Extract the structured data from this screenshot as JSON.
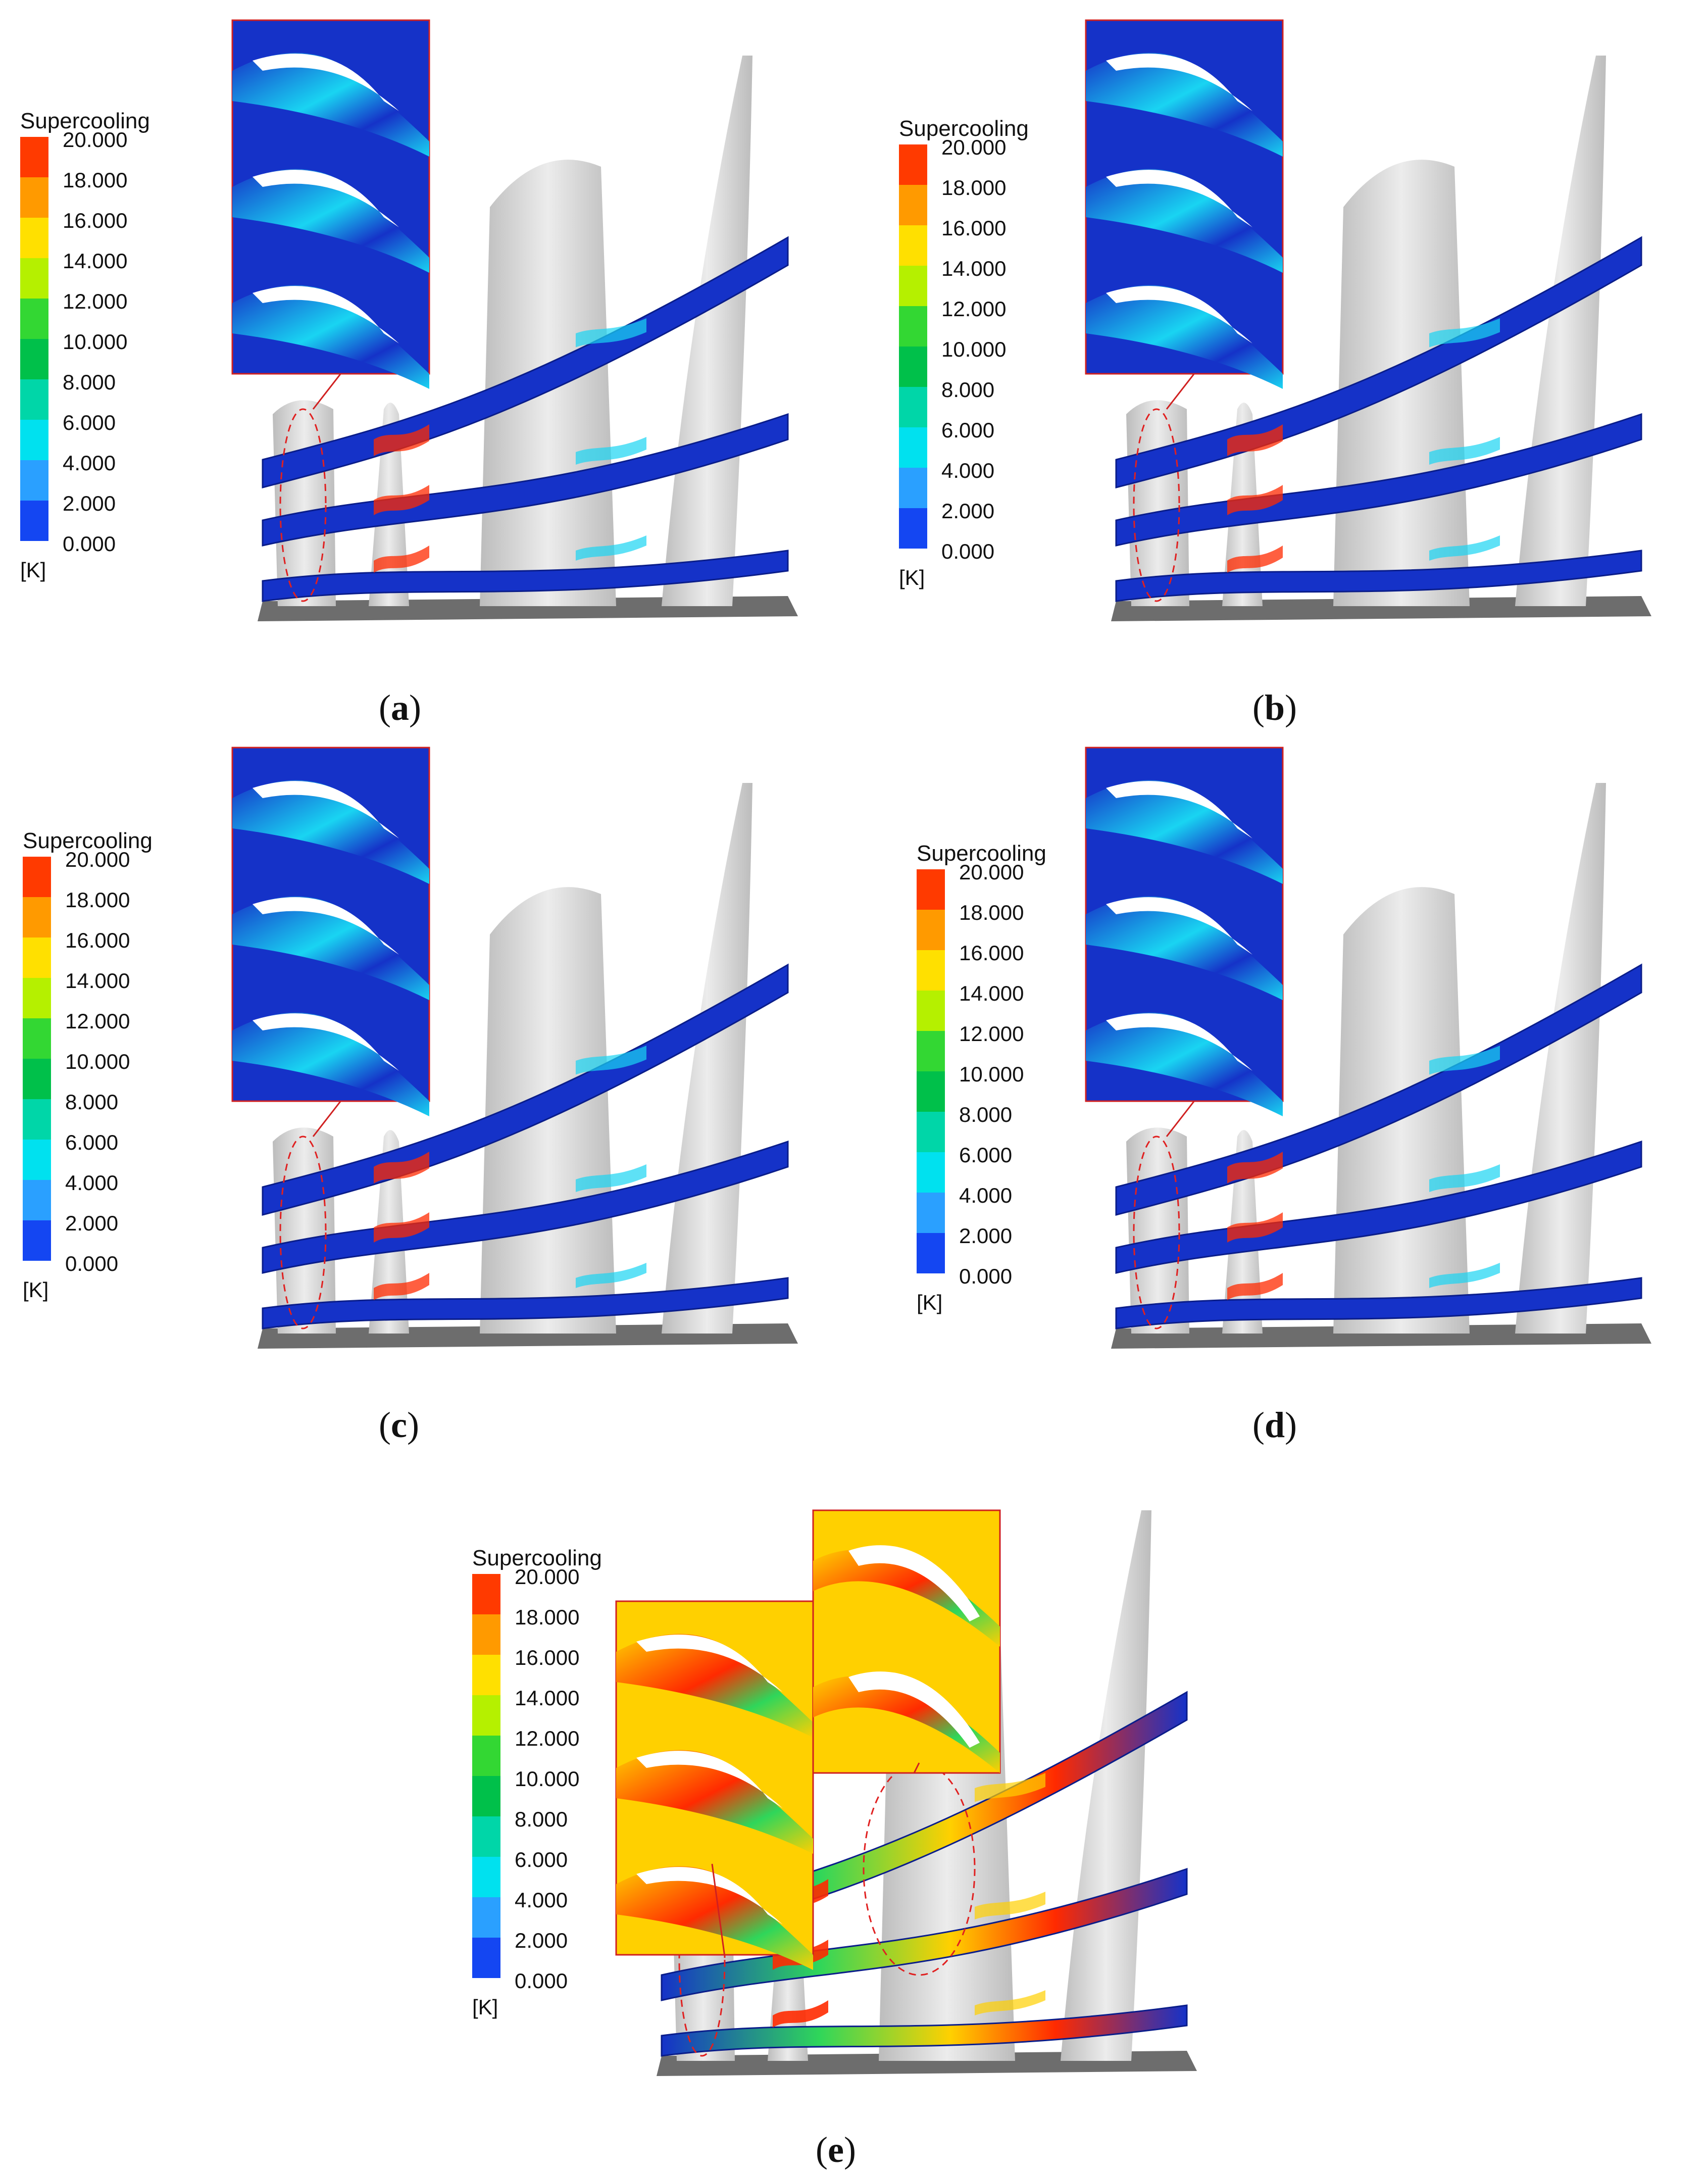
{
  "legend": {
    "title": "Supercooling",
    "unit": "[K]",
    "ticks": [
      "20.000",
      "18.000",
      "16.000",
      "14.000",
      "12.000",
      "10.000",
      "8.000",
      "6.000",
      "4.000",
      "2.000",
      "0.000"
    ],
    "band_colors": [
      "#ff3a00",
      "#ff9a00",
      "#ffe000",
      "#b5f000",
      "#33d733",
      "#00c04a",
      "#00d6a8",
      "#00e1ef",
      "#2aa0ff",
      "#1446f2"
    ]
  },
  "panels": [
    {
      "id": "a",
      "caption_open": "(",
      "caption_letter": "a",
      "caption_close": ")",
      "inset_palette": "cool",
      "highlight": "left"
    },
    {
      "id": "b",
      "caption_open": "(",
      "caption_letter": "b",
      "caption_close": ")",
      "inset_palette": "cool",
      "highlight": "left"
    },
    {
      "id": "c",
      "caption_open": "(",
      "caption_letter": "c",
      "caption_close": ")",
      "inset_palette": "cool",
      "highlight": "left"
    },
    {
      "id": "d",
      "caption_open": "(",
      "caption_letter": "d",
      "caption_close": ")",
      "inset_palette": "cool",
      "highlight": "left"
    },
    {
      "id": "e",
      "caption_open": "(",
      "caption_letter": "e",
      "caption_close": ")",
      "inset_palette": "hot",
      "highlight": "left-and-center"
    }
  ],
  "colors": {
    "blade": "#d2d2d2",
    "blade_shade": "#bcbcbc",
    "hub": "#6d6d6d",
    "sheet_base": "#1532c8",
    "sheet_edge": "#0a1d8a",
    "hot": "#ff2a00",
    "warm": "#ffd000",
    "mid": "#2fd65a",
    "cyan": "#19d4f2",
    "ellipse": "#e02020",
    "inset_border": "#d02020"
  }
}
